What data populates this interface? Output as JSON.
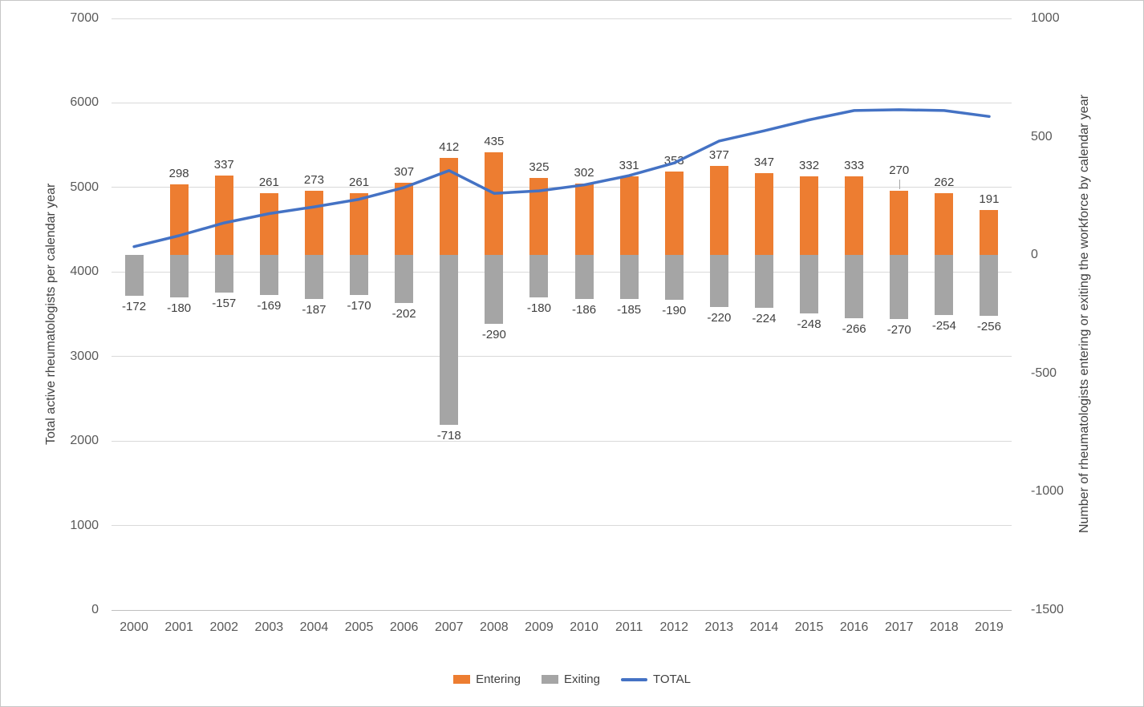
{
  "chart_data": {
    "type": "combo",
    "title": "",
    "categories": [
      "2000",
      "2001",
      "2002",
      "2003",
      "2004",
      "2005",
      "2006",
      "2007",
      "2008",
      "2009",
      "2010",
      "2011",
      "2012",
      "2013",
      "2014",
      "2015",
      "2016",
      "2017",
      "2018",
      "2019"
    ],
    "series": [
      {
        "name": "Entering",
        "type": "bar",
        "axis": "right",
        "color": "#ED7D31",
        "values": [
          null,
          298,
          337,
          261,
          273,
          261,
          307,
          412,
          435,
          325,
          302,
          331,
          353,
          377,
          347,
          332,
          333,
          270,
          262,
          191
        ]
      },
      {
        "name": "Exiting",
        "type": "bar",
        "axis": "right",
        "color": "#A5A5A5",
        "values": [
          -172,
          -180,
          -157,
          -169,
          -187,
          -170,
          -202,
          -718,
          -290,
          -180,
          -186,
          -185,
          -190,
          -220,
          -224,
          -248,
          -266,
          -270,
          -254,
          -256
        ]
      },
      {
        "name": "TOTAL",
        "type": "line",
        "axis": "left",
        "color": "#4472C4",
        "values": [
          4300,
          4430,
          4580,
          4690,
          4770,
          4860,
          5000,
          5200,
          4930,
          4960,
          5030,
          5140,
          5290,
          5550,
          5670,
          5800,
          5910,
          5920,
          5910,
          5840
        ]
      }
    ],
    "left_axis": {
      "title": "Total active rheumatologists per calendar year",
      "min": 0,
      "max": 7000,
      "step": 1000,
      "ticks": [
        "7000",
        "6000",
        "5000",
        "4000",
        "3000",
        "2000",
        "1000",
        "0"
      ]
    },
    "right_axis": {
      "title": "Number of rheumatologists entering or exiting the workforce by calendar year",
      "min": -1500,
      "max": 1000,
      "step": 500,
      "ticks": [
        "1000",
        "500",
        "0",
        "-500",
        "-1000",
        "-1500"
      ]
    },
    "legend": {
      "position": "bottom",
      "items": [
        "Entering",
        "Exiting",
        "TOTAL"
      ]
    },
    "grid": true,
    "label_leader_years": [
      "2017"
    ]
  },
  "colors": {
    "entering": "#ED7D31",
    "exiting": "#A5A5A5",
    "total_line": "#4472C4",
    "gridline": "#D9D9D9",
    "axis_text": "#595959",
    "data_label_text": "#404040"
  }
}
